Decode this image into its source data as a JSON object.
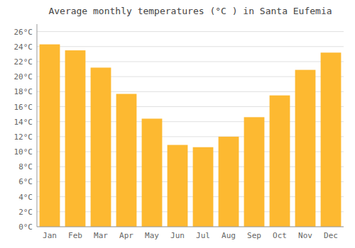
{
  "chart_data": {
    "type": "bar",
    "title": "Average monthly temperatures (°C ) in Santa Eufemia",
    "categories": [
      "Jan",
      "Feb",
      "Mar",
      "Apr",
      "May",
      "Jun",
      "Jul",
      "Aug",
      "Sep",
      "Oct",
      "Nov",
      "Dec"
    ],
    "values": [
      24.3,
      23.5,
      21.2,
      17.7,
      14.4,
      10.9,
      10.6,
      12.0,
      14.6,
      17.5,
      20.9,
      23.2
    ],
    "color": "#FDB931",
    "ylim": [
      0,
      27
    ],
    "yticks": [
      {
        "value": 0,
        "label": "0°C"
      },
      {
        "value": 2,
        "label": "2°C"
      },
      {
        "value": 4,
        "label": "4°C"
      },
      {
        "value": 6,
        "label": "6°C"
      },
      {
        "value": 8,
        "label": "8°C"
      },
      {
        "value": 10,
        "label": "10°C"
      },
      {
        "value": 12,
        "label": "12°C"
      },
      {
        "value": 14,
        "label": "14°C"
      },
      {
        "value": 16,
        "label": "16°C"
      },
      {
        "value": 18,
        "label": "18°C"
      },
      {
        "value": 20,
        "label": "20°C"
      },
      {
        "value": 22,
        "label": "22°C"
      },
      {
        "value": 24,
        "label": "24°C"
      },
      {
        "value": 26,
        "label": "26°C"
      }
    ],
    "grid": true
  }
}
